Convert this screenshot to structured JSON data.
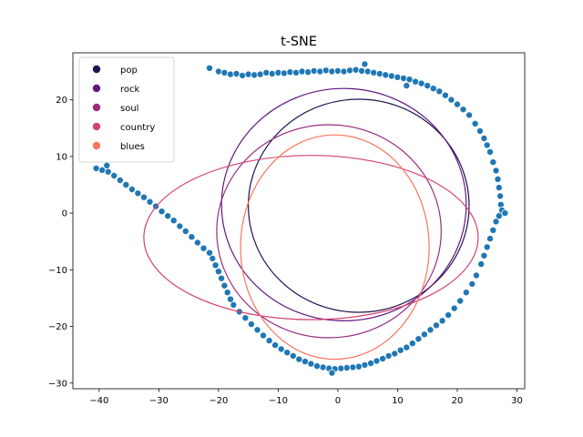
{
  "chart_data": {
    "type": "scatter",
    "title": "t-SNE",
    "xlabel": "",
    "ylabel": "",
    "xlim": [
      -44.4,
      31.3
    ],
    "ylim": [
      -31.0,
      28.3
    ],
    "xticks": [
      -40,
      -30,
      -20,
      -10,
      0,
      10,
      20,
      30
    ],
    "yticks": [
      -30,
      -20,
      -10,
      0,
      10,
      20
    ],
    "grid": false,
    "legend_position": "top-left",
    "point_color": "#1f77b4",
    "legend": [
      {
        "label": "pop",
        "color": "#221150"
      },
      {
        "label": "rock",
        "color": "#5f187f"
      },
      {
        "label": "soul",
        "color": "#982d80"
      },
      {
        "label": "country",
        "color": "#d3436e"
      },
      {
        "label": "blues",
        "color": "#f8765c"
      }
    ],
    "ellipses": [
      {
        "label": "pop",
        "cx": 3.5,
        "cy": 1.3,
        "rx": 18.5,
        "ry": 18.8,
        "rotation": 0
      },
      {
        "label": "rock",
        "cx": 1.0,
        "cy": 1.5,
        "rx": 20.5,
        "ry": 20.5,
        "rotation": 0
      },
      {
        "label": "soul",
        "cx": -1.5,
        "cy": -3.2,
        "rx": 18.8,
        "ry": 18.8,
        "rotation": 0
      },
      {
        "label": "country",
        "cx": -4.5,
        "cy": -4.3,
        "rx": 28.0,
        "ry": 14.5,
        "rotation": 0
      },
      {
        "label": "blues",
        "cx": -0.5,
        "cy": -6.0,
        "rx": 15.8,
        "ry": 19.8,
        "rotation": 0
      }
    ],
    "points": [
      [
        -21.5,
        25.6
      ],
      [
        -20.0,
        25.0
      ],
      [
        -19.0,
        24.8
      ],
      [
        -18.0,
        24.5
      ],
      [
        -17.0,
        24.6
      ],
      [
        -16.0,
        24.3
      ],
      [
        -15.0,
        24.5
      ],
      [
        -14.0,
        24.4
      ],
      [
        -13.0,
        24.5
      ],
      [
        -12.0,
        24.8
      ],
      [
        -11.0,
        24.6
      ],
      [
        -10.0,
        24.8
      ],
      [
        -9.0,
        24.7
      ],
      [
        -8.0,
        24.9
      ],
      [
        -7.0,
        24.8
      ],
      [
        -6.0,
        25.0
      ],
      [
        -5.0,
        24.9
      ],
      [
        -4.0,
        25.1
      ],
      [
        -3.0,
        25.0
      ],
      [
        -2.0,
        25.2
      ],
      [
        -1.0,
        25.0
      ],
      [
        0.0,
        25.1
      ],
      [
        1.0,
        25.0
      ],
      [
        2.0,
        25.2
      ],
      [
        3.0,
        25.3
      ],
      [
        4.0,
        25.1
      ],
      [
        4.5,
        26.3
      ],
      [
        5.0,
        25.0
      ],
      [
        6.0,
        24.8
      ],
      [
        7.0,
        24.6
      ],
      [
        8.0,
        24.4
      ],
      [
        9.0,
        24.2
      ],
      [
        10.0,
        24.0
      ],
      [
        11.0,
        23.8
      ],
      [
        11.5,
        22.5
      ],
      [
        12.0,
        23.6
      ],
      [
        13.0,
        23.2
      ],
      [
        14.0,
        22.9
      ],
      [
        15.0,
        22.5
      ],
      [
        16.0,
        22.0
      ],
      [
        17.0,
        21.5
      ],
      [
        18.0,
        20.8
      ],
      [
        19.0,
        20.0
      ],
      [
        20.0,
        19.2
      ],
      [
        21.0,
        18.3
      ],
      [
        22.0,
        17.3
      ],
      [
        23.0,
        15.8
      ],
      [
        23.8,
        14.5
      ],
      [
        24.5,
        13.2
      ],
      [
        25.0,
        12.0
      ],
      [
        25.5,
        10.8
      ],
      [
        26.0,
        9.0
      ],
      [
        26.5,
        7.5
      ],
      [
        26.8,
        6.0
      ],
      [
        27.0,
        4.5
      ],
      [
        27.2,
        3.0
      ],
      [
        27.3,
        1.5
      ],
      [
        27.5,
        0.5
      ],
      [
        28.0,
        0.0
      ],
      [
        27.0,
        -0.5
      ],
      [
        26.5,
        -1.5
      ],
      [
        26.0,
        -3.0
      ],
      [
        25.5,
        -4.5
      ],
      [
        25.0,
        -6.0
      ],
      [
        24.5,
        -7.5
      ],
      [
        24.0,
        -9.0
      ],
      [
        23.2,
        -11.0
      ],
      [
        22.5,
        -12.5
      ],
      [
        21.5,
        -14.0
      ],
      [
        20.5,
        -15.5
      ],
      [
        19.5,
        -16.8
      ],
      [
        18.5,
        -18.0
      ],
      [
        17.5,
        -19.0
      ],
      [
        16.5,
        -19.8
      ],
      [
        15.5,
        -20.6
      ],
      [
        14.5,
        -21.4
      ],
      [
        13.5,
        -22.2
      ],
      [
        12.5,
        -23.0
      ],
      [
        11.5,
        -23.7
      ],
      [
        10.5,
        -24.2
      ],
      [
        9.5,
        -24.8
      ],
      [
        8.5,
        -25.2
      ],
      [
        7.5,
        -25.7
      ],
      [
        6.5,
        -26.1
      ],
      [
        5.5,
        -26.5
      ],
      [
        4.5,
        -26.8
      ],
      [
        3.5,
        -27.1
      ],
      [
        2.5,
        -27.2
      ],
      [
        1.5,
        -27.3
      ],
      [
        0.5,
        -27.4
      ],
      [
        -0.5,
        -27.5
      ],
      [
        -1.5,
        -27.4
      ],
      [
        -1.0,
        -28.2
      ],
      [
        -2.5,
        -27.2
      ],
      [
        -3.5,
        -27.0
      ],
      [
        -4.5,
        -26.6
      ],
      [
        -5.5,
        -26.2
      ],
      [
        -6.5,
        -25.8
      ],
      [
        -7.5,
        -25.2
      ],
      [
        -8.5,
        -24.6
      ],
      [
        -9.5,
        -24.0
      ],
      [
        -10.5,
        -23.3
      ],
      [
        -11.5,
        -22.5
      ],
      [
        -12.5,
        -21.6
      ],
      [
        -13.5,
        -20.6
      ],
      [
        -14.5,
        -19.6
      ],
      [
        -15.5,
        -18.5
      ],
      [
        -16.5,
        -17.4
      ],
      [
        -17.5,
        -16.2
      ],
      [
        -18.0,
        -15.2
      ],
      [
        -18.5,
        -14.0
      ],
      [
        -19.0,
        -12.8
      ],
      [
        -19.5,
        -11.5
      ],
      [
        -20.0,
        -10.3
      ],
      [
        -20.5,
        -9.2
      ],
      [
        -21.0,
        -8.0
      ],
      [
        -21.5,
        -7.0
      ],
      [
        -22.5,
        -6.2
      ],
      [
        -23.5,
        -5.2
      ],
      [
        -24.5,
        -4.2
      ],
      [
        -25.5,
        -3.2
      ],
      [
        -26.5,
        -2.3
      ],
      [
        -27.5,
        -1.3
      ],
      [
        -28.5,
        -0.5
      ],
      [
        -29.5,
        0.3
      ],
      [
        -30.5,
        1.2
      ],
      [
        -31.5,
        2.0
      ],
      [
        -32.5,
        2.8
      ],
      [
        -33.5,
        3.5
      ],
      [
        -34.5,
        4.2
      ],
      [
        -35.5,
        5.0
      ],
      [
        -36.5,
        5.8
      ],
      [
        -37.5,
        6.6
      ],
      [
        -38.5,
        7.3
      ],
      [
        -39.5,
        7.6
      ],
      [
        -40.5,
        7.9
      ],
      [
        -38.7,
        8.4
      ]
    ]
  }
}
